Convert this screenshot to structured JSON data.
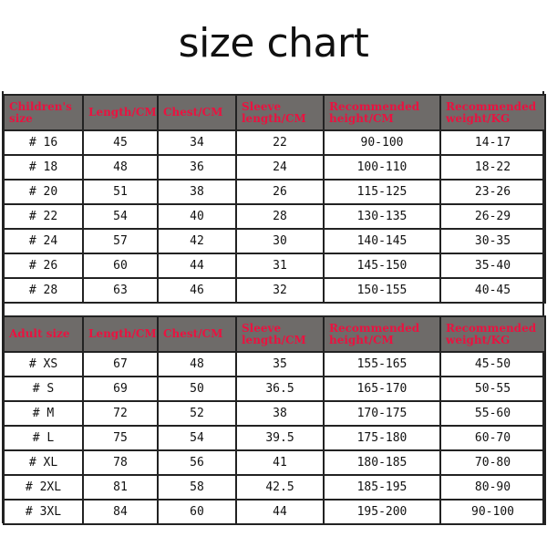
{
  "title": "size chart",
  "children": {
    "headers": [
      "Children's size",
      "Length/CM",
      "Chest/CM",
      "Sleeve length/CM",
      "Recommended height/CM",
      "Recommended weight/KG"
    ],
    "rows": [
      [
        "# 16",
        "45",
        "34",
        "22",
        "90-100",
        "14-17"
      ],
      [
        "# 18",
        "48",
        "36",
        "24",
        "100-110",
        "18-22"
      ],
      [
        "# 20",
        "51",
        "38",
        "26",
        "115-125",
        "23-26"
      ],
      [
        "# 22",
        "54",
        "40",
        "28",
        "130-135",
        "26-29"
      ],
      [
        "# 24",
        "57",
        "42",
        "30",
        "140-145",
        "30-35"
      ],
      [
        "# 26",
        "60",
        "44",
        "31",
        "145-150",
        "35-40"
      ],
      [
        "# 28",
        "63",
        "46",
        "32",
        "150-155",
        "40-45"
      ]
    ]
  },
  "adult": {
    "headers": [
      "Adult size",
      "Length/CM",
      "Chest/CM",
      "Sleeve length/CM",
      "Recommended height/CM",
      "Recommended weight/KG"
    ],
    "rows": [
      [
        "# XS",
        "67",
        "48",
        "35",
        "155-165",
        "45-50"
      ],
      [
        "# S",
        "69",
        "50",
        "36.5",
        "165-170",
        "50-55"
      ],
      [
        "# M",
        "72",
        "52",
        "38",
        "170-175",
        "55-60"
      ],
      [
        "# L",
        "75",
        "54",
        "39.5",
        "175-180",
        "60-70"
      ],
      [
        "# XL",
        "78",
        "56",
        "41",
        "180-185",
        "70-80"
      ],
      [
        "# 2XL",
        "81",
        "58",
        "42.5",
        "185-195",
        "80-90"
      ],
      [
        "# 3XL",
        "84",
        "60",
        "44",
        "195-200",
        "90-100"
      ]
    ]
  },
  "colors": {
    "header_bg": "#6e6b69",
    "header_text": "#ea1240"
  }
}
